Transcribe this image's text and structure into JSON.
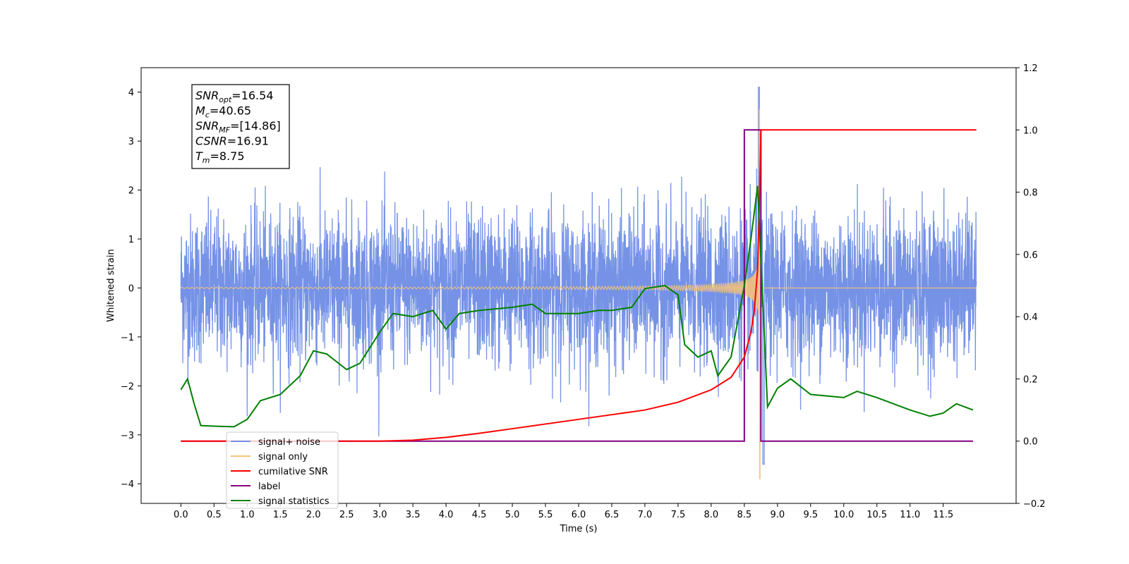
{
  "chart_data": {
    "type": "line",
    "xlabel": "Time (s)",
    "ylabel_left": "Whitened strain",
    "ylabel_right": "",
    "xlim": [
      -0.6,
      12.6
    ],
    "ylim_left": [
      -4.4,
      4.5
    ],
    "ylim_right": [
      -0.2,
      1.2
    ],
    "x_ticks": [
      0.0,
      0.5,
      1.0,
      1.5,
      2.0,
      2.5,
      3.0,
      3.5,
      4.0,
      4.5,
      5.0,
      5.5,
      6.0,
      6.5,
      7.0,
      7.5,
      8.0,
      8.5,
      9.0,
      9.5,
      10.0,
      10.5,
      11.0,
      11.5
    ],
    "x_tick_labels": [
      "0.0",
      "0.5",
      "1.0",
      "1.5",
      "2.0",
      "2.5",
      "3.0",
      "3.5",
      "4.0",
      "4.5",
      "5.0",
      "5.5",
      "6.0",
      "6.5",
      "7.0",
      "7.5",
      "8.0",
      "8.5",
      "9.0",
      "9.5",
      "10.0",
      "10.5",
      "11.0",
      "11.5"
    ],
    "y_ticks_left": [
      -4,
      -3,
      -2,
      -1,
      0,
      1,
      2,
      3,
      4
    ],
    "y_tick_labels_left": [
      "−4",
      "−3",
      "−2",
      "−1",
      "0",
      "1",
      "2",
      "3",
      "4"
    ],
    "y_ticks_right": [
      -0.2,
      0.0,
      0.2,
      0.4,
      0.6,
      0.8,
      1.0,
      1.2
    ],
    "y_tick_labels_right": [
      "−0.2",
      "0.0",
      "0.2",
      "0.4",
      "0.6",
      "0.8",
      "1.0",
      "1.2"
    ],
    "grid": false,
    "legend_position": "lower-left",
    "merger_time": 8.75,
    "series": [
      {
        "name": "signal+ noise",
        "axis": "left",
        "color": "#7592e6",
        "x_range": [
          0,
          12
        ],
        "approx_envelope": {
          "typical_min": -2.2,
          "typical_max": 2.3,
          "peak_max": 4.1,
          "peak_min": -3.6
        }
      },
      {
        "name": "signal only",
        "axis": "left",
        "color": "#f5c27a",
        "x_range": [
          0,
          12
        ],
        "chirp_start": 6.5,
        "peak_amplitude_pos": 3.65,
        "peak_amplitude_neg": -3.9
      },
      {
        "name": "cumilative SNR",
        "axis": "right",
        "color": "#ff0000",
        "x": [
          0.0,
          3.0,
          3.5,
          4.0,
          4.5,
          5.0,
          5.5,
          6.0,
          6.5,
          7.0,
          7.5,
          8.0,
          8.3,
          8.5,
          8.6,
          8.65,
          8.7,
          8.73,
          8.75,
          9.0,
          10.0,
          11.0,
          12.0
        ],
        "values": [
          0.0,
          0.0,
          0.003,
          0.012,
          0.025,
          0.04,
          0.055,
          0.07,
          0.085,
          0.1,
          0.125,
          0.165,
          0.205,
          0.27,
          0.35,
          0.42,
          0.55,
          0.8,
          1.0,
          1.0,
          1.0,
          1.0,
          1.0
        ]
      },
      {
        "name": "label",
        "axis": "right",
        "color": "#800080",
        "x": [
          0.0,
          8.5,
          8.5,
          8.75,
          8.75,
          11.95
        ],
        "values": [
          0.0,
          0.0,
          1.0,
          1.0,
          0.0,
          0.0
        ]
      },
      {
        "name": "signal statistics",
        "axis": "right",
        "color": "#008000",
        "x": [
          0.0,
          0.1,
          0.2,
          0.3,
          0.5,
          0.8,
          1.0,
          1.2,
          1.5,
          1.8,
          2.0,
          2.2,
          2.5,
          2.7,
          3.0,
          3.2,
          3.5,
          3.8,
          4.0,
          4.2,
          4.5,
          5.0,
          5.3,
          5.5,
          6.0,
          6.3,
          6.5,
          6.8,
          7.0,
          7.3,
          7.5,
          7.6,
          7.8,
          8.0,
          8.1,
          8.3,
          8.5,
          8.6,
          8.7,
          8.85,
          9.0,
          9.2,
          9.5,
          10.0,
          10.2,
          10.5,
          11.0,
          11.3,
          11.5,
          11.7,
          11.95
        ],
        "values": [
          0.165,
          0.2,
          0.12,
          0.05,
          0.048,
          0.046,
          0.07,
          0.13,
          0.15,
          0.21,
          0.29,
          0.28,
          0.23,
          0.25,
          0.35,
          0.41,
          0.4,
          0.42,
          0.36,
          0.41,
          0.42,
          0.43,
          0.44,
          0.41,
          0.41,
          0.42,
          0.42,
          0.43,
          0.49,
          0.5,
          0.47,
          0.31,
          0.27,
          0.29,
          0.21,
          0.27,
          0.5,
          0.65,
          0.82,
          0.11,
          0.17,
          0.2,
          0.15,
          0.14,
          0.16,
          0.14,
          0.1,
          0.08,
          0.09,
          0.12,
          0.1
        ]
      }
    ],
    "annotation": {
      "lines": [
        {
          "base": "SNR",
          "sub": "opt",
          "value": "=16.54"
        },
        {
          "base": "M",
          "sub": "c",
          "value": "=40.65"
        },
        {
          "base": "SNR",
          "sub": "MF",
          "value": "=[14.86]"
        },
        {
          "base": "CSNR",
          "sub": "",
          "value": "=16.91"
        },
        {
          "base": "T",
          "sub": "m",
          "value": "=8.75"
        }
      ]
    },
    "legend": {
      "entries": [
        "signal+ noise",
        "signal only",
        "cumilative SNR",
        "label",
        "signal statistics"
      ],
      "colors": [
        "#7592e6",
        "#f5c27a",
        "#ff0000",
        "#800080",
        "#008000"
      ]
    }
  }
}
